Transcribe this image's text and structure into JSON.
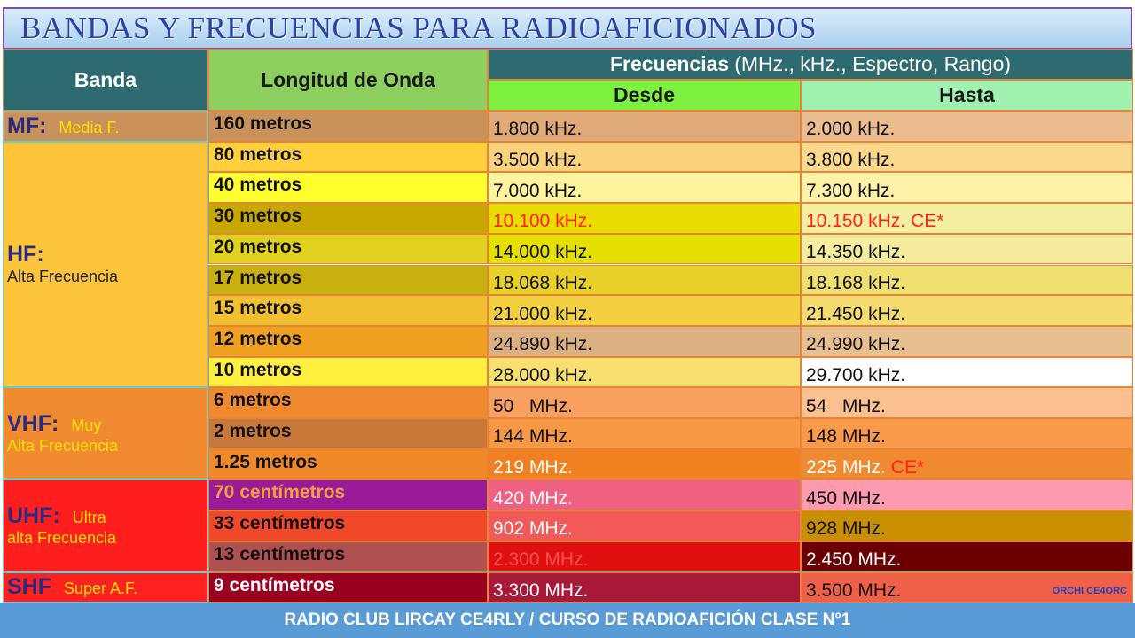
{
  "title": "BANDAS Y FRECUENCIAS PARA RADIOAFICIONADOS",
  "header": {
    "banda": "Banda",
    "longitud": "Longitud de Onda",
    "frecuencias": "Frecuencias",
    "frecuencias_units": "(MHz., kHz., Espectro, Rango)",
    "desde": "Desde",
    "hasta": "Hasta"
  },
  "bands": [
    {
      "code": "MF:",
      "inline": "Media F.",
      "bg": "#c8925a",
      "rows": [
        {
          "longitud": "160 metros",
          "desde": "1.800 kHz.",
          "hasta": "2.000 kHz.",
          "bg": [
            "#c8925a",
            "#e0aa78",
            "#ebbd90"
          ],
          "fg": [
            "#111",
            "#111",
            "#111"
          ]
        }
      ]
    },
    {
      "code": "HF:",
      "below": "Alta Frecuencia",
      "bg": "#fcc43a",
      "rows": [
        {
          "longitud": "80 metros",
          "desde": "3.500 kHz.",
          "hasta": "3.800 kHz.",
          "bg": [
            "#ffcf3c",
            "#fbd27c",
            "#fad98c"
          ],
          "fg": [
            "#111",
            "#111",
            "#111"
          ]
        },
        {
          "longitud": "40 metros",
          "desde": "7.000 kHz.",
          "hasta": "7.300 kHz.",
          "bg": [
            "#ffff30",
            "#fff49e",
            "#fff2a8"
          ],
          "fg": [
            "#111",
            "#111",
            "#111"
          ]
        },
        {
          "longitud": "30 metros",
          "desde": "10.100 kHz.",
          "hasta": "10.150 kHz.",
          "hasta_note": "CE*",
          "bg": [
            "#c8a800",
            "#e8dc00",
            "#f4eea0"
          ],
          "fg": [
            "#111",
            "#ff2020",
            "#ff2020"
          ]
        },
        {
          "longitud": "20 metros",
          "desde": "14.000 kHz.",
          "hasta": "14.350 kHz.",
          "bg": [
            "#e0d020",
            "#e6e000",
            "#f4eb9c"
          ],
          "fg": [
            "#111",
            "#111",
            "#111"
          ]
        },
        {
          "longitud": "17 metros",
          "desde": "18.068 kHz.",
          "hasta": "18.168 kHz.",
          "bg": [
            "#c8b010",
            "#e8d028",
            "#f0e070"
          ],
          "fg": [
            "#111",
            "#111",
            "#111"
          ]
        },
        {
          "longitud": "15 metros",
          "desde": "21.000 kHz.",
          "hasta": "21.450 kHz.",
          "bg": [
            "#f0c030",
            "#f2d040",
            "#f4dc70"
          ],
          "fg": [
            "#111",
            "#111",
            "#111"
          ]
        },
        {
          "longitud": "12 metros",
          "desde": "24.890 kHz.",
          "hasta": "24.990 kHz.",
          "bg": [
            "#f0a020",
            "#dcb080",
            "#e8c090"
          ],
          "fg": [
            "#111",
            "#111",
            "#111"
          ]
        },
        {
          "longitud": "10 metros",
          "desde": "28.000 kHz.",
          "hasta": "29.700 kHz.",
          "bg": [
            "#fff040",
            "#f8e070",
            "#ffffff"
          ],
          "fg": [
            "#111",
            "#111",
            "#111"
          ]
        }
      ]
    },
    {
      "code": "VHF:",
      "inline": "Muy",
      "below": "Alta Frecuencia",
      "bg": "#f08a30",
      "rows": [
        {
          "longitud": "6 metros",
          "desde": "50   MHz.",
          "hasta": "54   MHz.",
          "bg": [
            "#f08a30",
            "#f8a060",
            "#fac090"
          ],
          "fg": [
            "#111",
            "#111",
            "#111"
          ]
        },
        {
          "longitud": "2 metros",
          "desde": "144 MHz.",
          "hasta": "148 MHz.",
          "bg": [
            "#c87838",
            "#f79845",
            "#f99a4a"
          ],
          "fg": [
            "#111",
            "#111",
            "#111"
          ]
        },
        {
          "longitud": "1.25 metros",
          "desde": "219 MHz.",
          "hasta": "225 MHz.",
          "hasta_note": "CE*",
          "bg": [
            "#f08a28",
            "#f08020",
            "#f08a30"
          ],
          "fg": [
            "#111",
            "#fff",
            "#fff"
          ]
        }
      ]
    },
    {
      "code": "UHF:",
      "inline": "Ultra",
      "below": "alta Frecuencia",
      "bg": "#ff1e1e",
      "rows": [
        {
          "longitud": "70 centímetros",
          "desde": "420 MHz.",
          "hasta": "450 MHz.",
          "bg": [
            "#9a1a9a",
            "#f06080",
            "#fc9ab0"
          ],
          "fg": [
            "#f0a040",
            "#fff",
            "#111"
          ]
        },
        {
          "longitud": "33 centímetros",
          "desde": "902 MHz.",
          "hasta": "928 MHz.",
          "bg": [
            "#f04828",
            "#f25a5a",
            "#c89000"
          ],
          "fg": [
            "#111",
            "#fff",
            "#111"
          ]
        },
        {
          "longitud": "13 centímetros",
          "desde": "2.300 MHz.",
          "hasta": "2.450 MHz.",
          "bg": [
            "#b05050",
            "#e01010",
            "#6a0000"
          ],
          "fg": [
            "#111",
            "#ff5050",
            "#fff"
          ]
        }
      ]
    },
    {
      "code": "SHF",
      "inline": "Super A.F.",
      "bg": "#ff2020",
      "rows": [
        {
          "longitud": "9 centímetros",
          "desde": "3.300 MHz.",
          "hasta": "3.500 MHz.",
          "bg": [
            "#9a0020",
            "#a81838",
            "#f06048"
          ],
          "fg": [
            "#fff",
            "#fff",
            "#111"
          ]
        }
      ]
    }
  ],
  "credit": "ORCHI CE4ORC",
  "footer": "RADIO CLUB LIRCAY  CE4RLY / CURSO DE RADIOAFICIÓN CLASE N°1"
}
